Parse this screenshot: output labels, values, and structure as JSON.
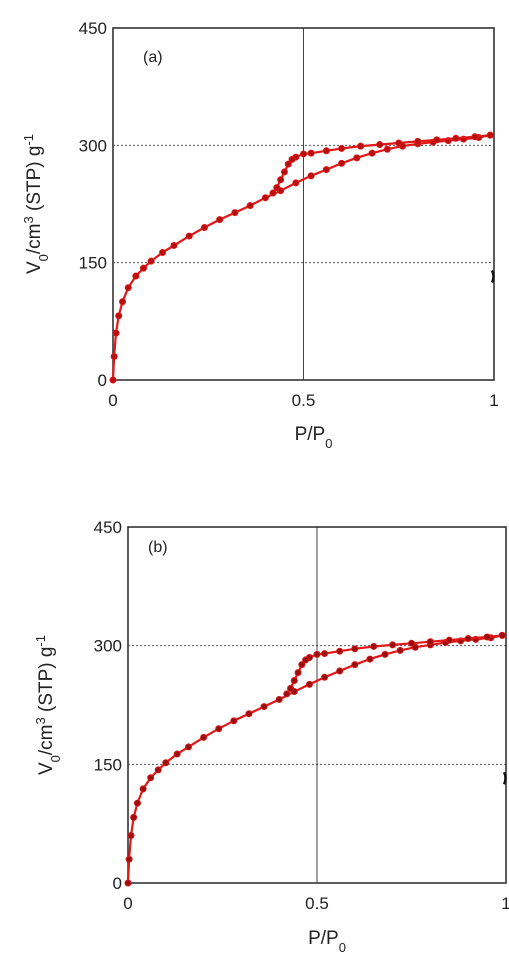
{
  "chart_data": [
    {
      "type": "line",
      "panel_label": "(a)",
      "xlabel": "P/P",
      "xlabel_sub": "0",
      "ylabel": "V",
      "ylabel_sub": "0",
      "ylabel_rest": "/cm",
      "ylabel_sup": "3",
      "ylabel_tail": " (STP) g",
      "ylabel_sup2": "-1",
      "xlim": [
        0,
        1
      ],
      "ylim": [
        0,
        450
      ],
      "x_ticks": [
        "0",
        "0.5",
        "1"
      ],
      "y_ticks": [
        "0",
        "150",
        "300",
        "450"
      ],
      "grid": true,
      "color": "#e01818",
      "marker_color": "#b80f0f",
      "series": [
        {
          "x": [
            0.0,
            0.003,
            0.008,
            0.015,
            0.025,
            0.04,
            0.06,
            0.08,
            0.1,
            0.13,
            0.16,
            0.2,
            0.24,
            0.28,
            0.32,
            0.36,
            0.4,
            0.44,
            0.48,
            0.52,
            0.56,
            0.6,
            0.64,
            0.68,
            0.72,
            0.76,
            0.8,
            0.84,
            0.88,
            0.92,
            0.96,
            0.99
          ],
          "y": [
            0,
            30,
            60,
            82,
            100,
            118,
            133,
            143,
            152,
            163,
            172,
            184,
            195,
            205,
            214,
            223,
            233,
            242,
            252,
            261,
            269,
            277,
            284,
            290,
            295,
            299,
            302,
            304,
            306,
            308,
            310,
            313
          ]
        },
        {
          "x": [
            0.99,
            0.95,
            0.9,
            0.85,
            0.8,
            0.75,
            0.7,
            0.65,
            0.6,
            0.56,
            0.52,
            0.5,
            0.48,
            0.47,
            0.46,
            0.45,
            0.44,
            0.43,
            0.42
          ],
          "y": [
            313,
            311,
            309,
            307,
            305,
            303,
            301,
            299,
            296,
            293,
            290,
            289,
            285,
            282,
            276,
            266,
            256,
            246,
            239
          ]
        }
      ]
    },
    {
      "type": "line",
      "panel_label": "(b)",
      "xlabel": "P/P",
      "xlabel_sub": "0",
      "ylabel": "V",
      "ylabel_sub": "0",
      "ylabel_rest": "/cm",
      "ylabel_sup": "3",
      "ylabel_tail": " (STP) g",
      "ylabel_sup2": "-1",
      "xlim": [
        0,
        1
      ],
      "ylim": [
        0,
        450
      ],
      "x_ticks": [
        "0",
        "0.5",
        "1"
      ],
      "y_ticks": [
        "0",
        "150",
        "300",
        "450"
      ],
      "grid": true,
      "color": "#e01818",
      "marker_color": "#9a1010",
      "series": [
        {
          "x": [
            0.0,
            0.003,
            0.008,
            0.015,
            0.025,
            0.04,
            0.06,
            0.08,
            0.1,
            0.13,
            0.16,
            0.2,
            0.24,
            0.28,
            0.32,
            0.36,
            0.4,
            0.44,
            0.48,
            0.52,
            0.56,
            0.6,
            0.64,
            0.68,
            0.72,
            0.76,
            0.8,
            0.84,
            0.88,
            0.92,
            0.96,
            0.99
          ],
          "y": [
            0,
            30,
            60,
            83,
            101,
            119,
            133,
            143,
            152,
            163,
            172,
            184,
            195,
            205,
            214,
            223,
            232,
            242,
            251,
            260,
            268,
            276,
            283,
            289,
            294,
            298,
            301,
            304,
            306,
            308,
            310,
            313
          ]
        },
        {
          "x": [
            0.99,
            0.95,
            0.9,
            0.85,
            0.8,
            0.75,
            0.7,
            0.65,
            0.6,
            0.56,
            0.52,
            0.5,
            0.48,
            0.47,
            0.46,
            0.45,
            0.44,
            0.43,
            0.42
          ],
          "y": [
            313,
            311,
            309,
            307,
            305,
            303,
            301,
            299,
            296,
            293,
            290,
            289,
            285,
            282,
            276,
            266,
            256,
            246,
            239
          ]
        }
      ]
    }
  ]
}
